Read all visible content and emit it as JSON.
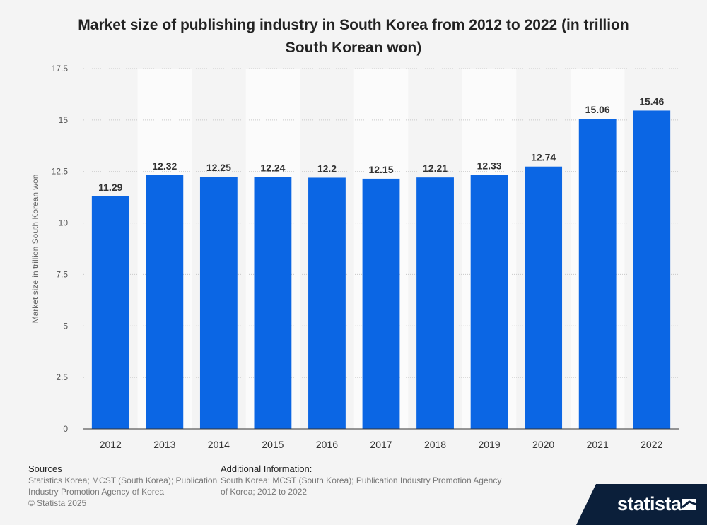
{
  "title": "Market size of publishing industry in South Korea from 2012 to 2022 (in trillion South Korean won)",
  "chart_data": {
    "type": "bar",
    "categories": [
      "2012",
      "2013",
      "2014",
      "2015",
      "2016",
      "2017",
      "2018",
      "2019",
      "2020",
      "2021",
      "2022"
    ],
    "values": [
      11.29,
      12.32,
      12.25,
      12.24,
      12.2,
      12.15,
      12.21,
      12.33,
      12.74,
      15.06,
      15.46
    ],
    "value_labels": [
      "11.29",
      "12.32",
      "12.25",
      "12.24",
      "12.2",
      "12.15",
      "12.21",
      "12.33",
      "12.74",
      "15.06",
      "15.46"
    ],
    "ylabel": "Market size in trillion South Korean won",
    "ylim": [
      0,
      17.5
    ],
    "yticks": [
      0,
      2.5,
      5,
      7.5,
      10,
      12.5,
      15,
      17.5
    ],
    "ytick_labels": [
      "0",
      "2.5",
      "5",
      "7.5",
      "10",
      "12.5",
      "15",
      "17.5"
    ],
    "grid": true,
    "bar_color": "#0b66e4"
  },
  "footer": {
    "sources_heading": "Sources",
    "sources_lines": [
      "Statistics Korea; MCST (South Korea); Publication",
      "Industry Promotion Agency of Korea",
      "© Statista 2025"
    ],
    "additional_heading": "Additional Information:",
    "additional_lines": [
      "South Korea; MCST (South Korea); Publication Industry Promotion Agency",
      "of Korea; 2012 to 2022"
    ]
  },
  "brand": {
    "name": "statista",
    "icon": "statista-logo-icon"
  }
}
